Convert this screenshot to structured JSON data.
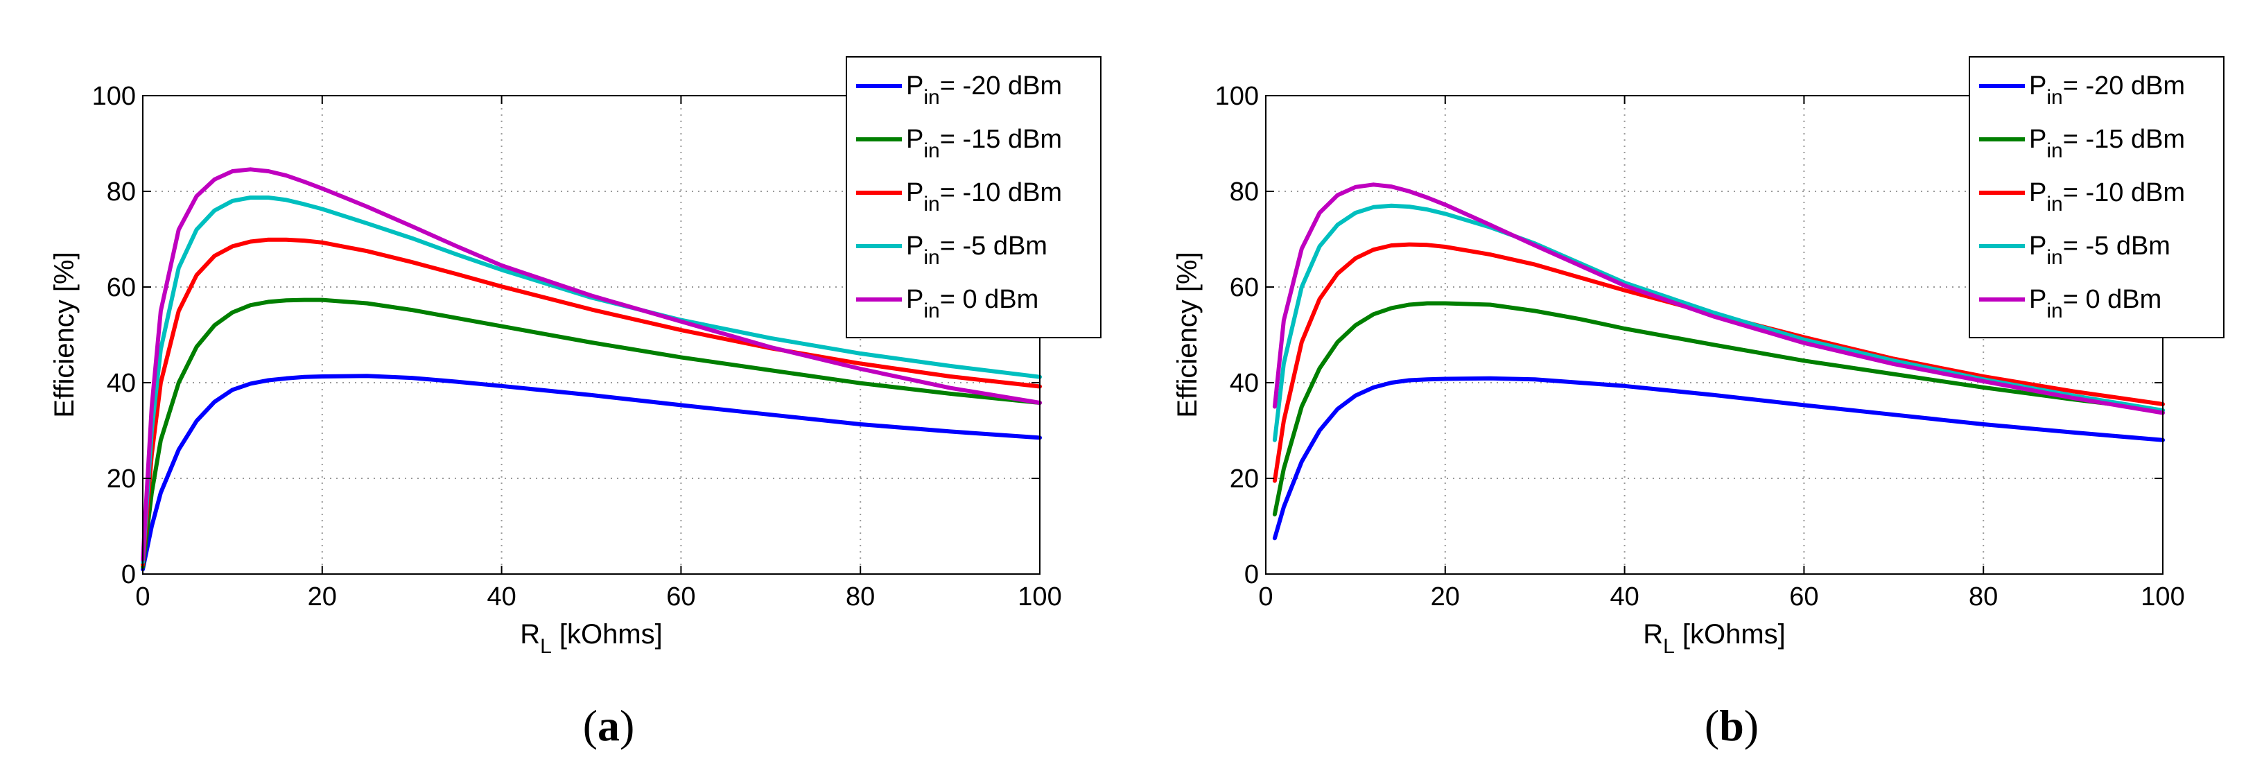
{
  "chart_data": [
    {
      "type": "line",
      "panel": "a",
      "caption_letter": "a",
      "xlabel_main": "R",
      "xlabel_sub": "L",
      "xlabel_rest": " [kOhms]",
      "ylabel": "Efficiency [%]",
      "xlim": [
        0,
        100
      ],
      "ylim": [
        0,
        100
      ],
      "xticks": [
        0,
        20,
        40,
        60,
        80,
        100
      ],
      "yticks": [
        0,
        20,
        40,
        60,
        80,
        100
      ],
      "grid": true,
      "legend_position": "top-right",
      "x": [
        0,
        1,
        2,
        4,
        6,
        8,
        10,
        12,
        14,
        16,
        18,
        20,
        25,
        30,
        35,
        40,
        50,
        60,
        70,
        80,
        90,
        100
      ],
      "series": [
        {
          "name": "-20 dBm",
          "legend_main": "P",
          "legend_sub": "in",
          "legend_rest": "= -20 dBm",
          "color": "#0000ff",
          "values": [
            1,
            10,
            17,
            26,
            32,
            36,
            38.5,
            39.8,
            40.5,
            40.9,
            41.2,
            41.3,
            41.4,
            41.0,
            40.2,
            39.3,
            37.4,
            35.3,
            33.3,
            31.3,
            29.8,
            28.5
          ]
        },
        {
          "name": "-15 dBm",
          "legend_main": "P",
          "legend_sub": "in",
          "legend_rest": "= -15 dBm",
          "color": "#007f00",
          "values": [
            1.5,
            17,
            28,
            40,
            47.5,
            52,
            54.7,
            56.2,
            56.9,
            57.2,
            57.3,
            57.3,
            56.6,
            55.2,
            53.5,
            51.8,
            48.4,
            45.3,
            42.6,
            39.9,
            37.7,
            35.8
          ]
        },
        {
          "name": "-10 dBm",
          "legend_main": "P",
          "legend_sub": "in",
          "legend_rest": "= -10 dBm",
          "color": "#ff0000",
          "values": [
            2,
            25,
            40,
            55,
            62.5,
            66.5,
            68.5,
            69.5,
            69.9,
            69.9,
            69.7,
            69.3,
            67.5,
            65.2,
            62.7,
            60.1,
            55.3,
            51.0,
            47.2,
            44.0,
            41.3,
            39.2
          ]
        },
        {
          "name": "-5 dBm",
          "legend_main": "P",
          "legend_sub": "in",
          "legend_rest": "= -5 dBm",
          "color": "#00bfbf",
          "values": [
            2.5,
            30,
            47,
            64,
            72,
            76,
            78,
            78.7,
            78.7,
            78.2,
            77.3,
            76.3,
            73.3,
            70.2,
            66.8,
            63.6,
            57.8,
            53.1,
            49.3,
            46.1,
            43.5,
            41.2
          ]
        },
        {
          "name": "0 dBm",
          "legend_main": "P",
          "legend_sub": "in",
          "legend_rest": "= 0 dBm",
          "color": "#bf00bf",
          "values": [
            3,
            35,
            55,
            72,
            79,
            82.5,
            84.2,
            84.6,
            84.2,
            83.3,
            82.0,
            80.6,
            76.8,
            72.7,
            68.5,
            64.5,
            58.2,
            52.8,
            47.4,
            42.9,
            38.9,
            35.8
          ]
        }
      ]
    },
    {
      "type": "line",
      "panel": "b",
      "caption_letter": "b",
      "xlabel_main": "R",
      "xlabel_sub": "L",
      "xlabel_rest": " [kOhms]",
      "ylabel": "Efficiency [%]",
      "xlim": [
        0,
        100
      ],
      "ylim": [
        0,
        100
      ],
      "xticks": [
        0,
        20,
        40,
        60,
        80,
        100
      ],
      "yticks": [
        0,
        20,
        40,
        60,
        80,
        100
      ],
      "grid": true,
      "legend_position": "top-right",
      "x": [
        1,
        2,
        4,
        6,
        8,
        10,
        12,
        14,
        16,
        18,
        20,
        25,
        30,
        35,
        40,
        50,
        60,
        70,
        80,
        90,
        100
      ],
      "series": [
        {
          "name": "-20 dBm",
          "legend_main": "P",
          "legend_sub": "in",
          "legend_rest": "= -20 dBm",
          "color": "#0000ff",
          "values": [
            7.5,
            14,
            23.5,
            30,
            34.5,
            37.3,
            39.0,
            40.0,
            40.5,
            40.7,
            40.8,
            40.9,
            40.7,
            40.0,
            39.3,
            37.4,
            35.3,
            33.3,
            31.3,
            29.6,
            28.0
          ]
        },
        {
          "name": "-15 dBm",
          "legend_main": "P",
          "legend_sub": "in",
          "legend_rest": "= -15 dBm",
          "color": "#007f00",
          "values": [
            12.5,
            22,
            35,
            43,
            48.5,
            52,
            54.3,
            55.6,
            56.3,
            56.6,
            56.6,
            56.3,
            55.0,
            53.3,
            51.3,
            47.9,
            44.6,
            41.8,
            39.0,
            36.5,
            34.2
          ]
        },
        {
          "name": "-10 dBm",
          "legend_main": "P",
          "legend_sub": "in",
          "legend_rest": "= -10 dBm",
          "color": "#ff0000",
          "values": [
            19.5,
            32,
            48.5,
            57.5,
            62.8,
            66,
            67.8,
            68.7,
            68.9,
            68.8,
            68.4,
            66.8,
            64.7,
            62.0,
            59.3,
            54.3,
            49.5,
            45.0,
            41.3,
            38.2,
            35.5
          ]
        },
        {
          "name": "-5 dBm",
          "legend_main": "P",
          "legend_sub": "in",
          "legend_rest": "= -5 dBm",
          "color": "#00bfbf",
          "values": [
            28,
            44,
            60,
            68.5,
            73,
            75.5,
            76.7,
            77.0,
            76.8,
            76.2,
            75.3,
            72.5,
            69.1,
            65.0,
            60.9,
            54.6,
            49.0,
            44.6,
            40.7,
            37.3,
            34.2
          ]
        },
        {
          "name": "0 dBm",
          "legend_main": "P",
          "legend_sub": "in",
          "legend_rest": "= 0 dBm",
          "color": "#bf00bf",
          "values": [
            35,
            53,
            68,
            75.5,
            79.2,
            80.9,
            81.4,
            81.0,
            80.0,
            78.7,
            77.2,
            73.0,
            68.7,
            64.5,
            60.3,
            53.8,
            48.3,
            43.9,
            40.3,
            36.8,
            33.7
          ]
        }
      ]
    }
  ]
}
